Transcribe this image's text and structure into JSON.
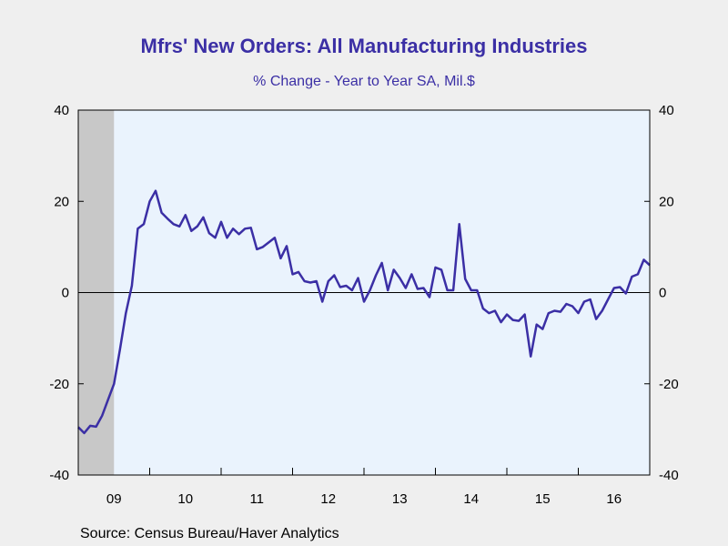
{
  "chart_data": {
    "type": "line",
    "title": "Mfrs' New Orders: All Manufacturing Industries",
    "subtitle": "% Change - Year to Year    SA, Mil.$",
    "source": "Source:  Census Bureau/Haver Analytics",
    "ylim": [
      -40,
      40
    ],
    "y_ticks": [
      40,
      20,
      0,
      -20,
      -40
    ],
    "y_tick_labels_left": [
      "40",
      "20",
      "0",
      "-20",
      "-40"
    ],
    "y_tick_labels_right": [
      "40",
      "20",
      "0",
      "-20",
      "-40"
    ],
    "x_start": 2009.0,
    "x_end": 2017.0,
    "x_tick_labels": [
      "09",
      "10",
      "11",
      "12",
      "13",
      "14",
      "15",
      "16"
    ],
    "recession_shading": [
      2009.0,
      2009.5
    ],
    "grid": false,
    "zero_line": true,
    "colors": {
      "line": "#3b2fa5",
      "plot_bg": "#eaf3fd",
      "page_bg": "#efefef",
      "recession": "#c8c8c8",
      "title": "#3b2fa5"
    },
    "series": [
      {
        "start": "2009-01",
        "frequency": "monthly",
        "values": [
          -29.5,
          -30.8,
          -29.2,
          -29.4,
          -27.0,
          -23.5,
          -20.0,
          -12.5,
          -4.5,
          1.5,
          14.0,
          15.0,
          20.0,
          22.3,
          17.5,
          16.2,
          15.0,
          14.5,
          17.0,
          13.5,
          14.5,
          16.5,
          13.0,
          12.0,
          15.5,
          12.0,
          14.0,
          12.8,
          14.0,
          14.2,
          9.5,
          10.0,
          11.0,
          12.0,
          7.5,
          10.2,
          4.0,
          4.5,
          2.5,
          2.2,
          2.5,
          -2.0,
          2.5,
          3.8,
          1.2,
          1.5,
          0.5,
          3.2,
          -2.0,
          0.5,
          3.8,
          6.5,
          0.5,
          5.0,
          3.2,
          1.0,
          4.0,
          0.8,
          1.0,
          -1.0,
          5.5,
          5.0,
          0.5,
          0.5,
          15.0,
          3.0,
          0.5,
          0.5,
          -3.5,
          -4.5,
          -4.0,
          -6.5,
          -4.8,
          -6.0,
          -6.2,
          -4.8,
          -14.0,
          -7.0,
          -8.0,
          -4.5,
          -4.0,
          -4.2,
          -2.5,
          -3.0,
          -4.5,
          -2.0,
          -1.5,
          -5.8,
          -4.0,
          -1.5,
          1.0,
          1.2,
          -0.2,
          3.5,
          4.0,
          7.2,
          6.0
        ]
      }
    ]
  }
}
